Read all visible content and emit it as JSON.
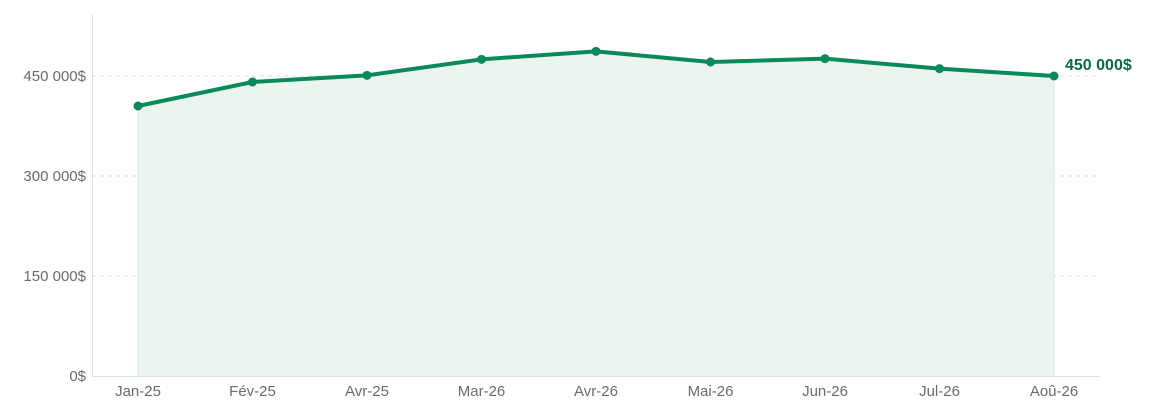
{
  "chart_data": {
    "type": "area",
    "title": "",
    "xlabel": "",
    "ylabel": "",
    "categories": [
      "Jan-25",
      "Fév-25",
      "Avr-25",
      "Mar-26",
      "Avr-26",
      "Mai-26",
      "Jun-26",
      "Jul-26",
      "Aoû-26"
    ],
    "values": [
      405000,
      441000,
      451000,
      475000,
      487000,
      471000,
      476000,
      461000,
      450000
    ],
    "ylim": [
      0,
      543000
    ],
    "yticks": [
      0,
      150000,
      300000,
      450000
    ],
    "ytick_labels": [
      "0$",
      "150 000$",
      "300 000$",
      "450 000$"
    ],
    "end_label": "450 000$",
    "grid": "horizontal dashed",
    "legend": "none",
    "colors": {
      "line": "#0a8a58",
      "fill": "#ebf5f0",
      "marker": "#0a8a58",
      "end_label": "#0a6b45",
      "grid": "#dddddd",
      "axis": "#e0e0e0",
      "tick_text": "#6b6b6b"
    }
  }
}
